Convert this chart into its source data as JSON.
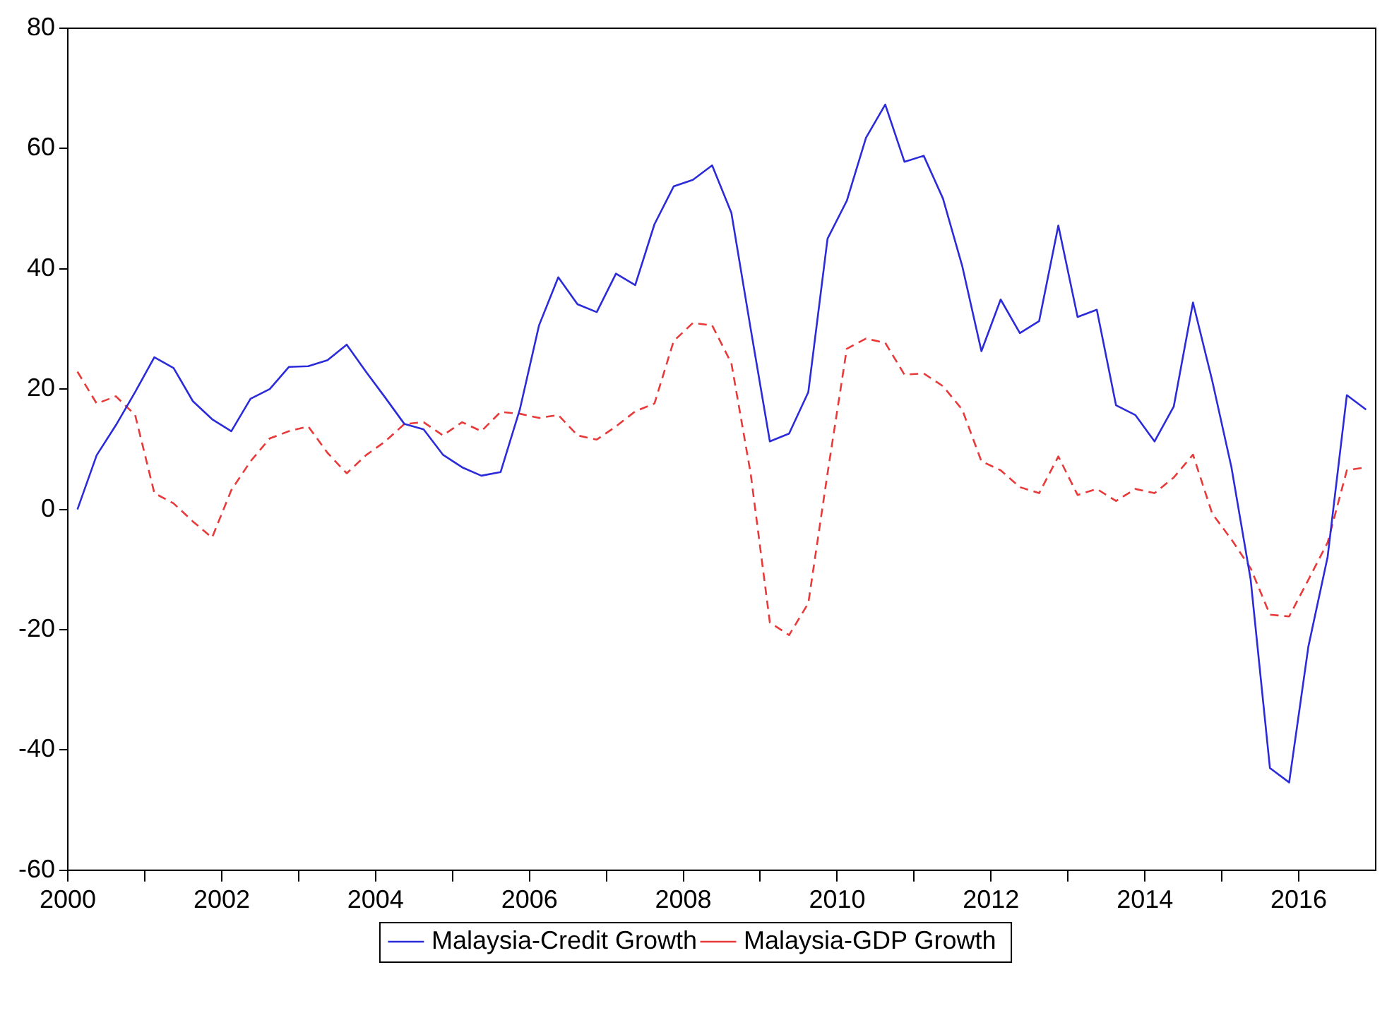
{
  "chart_data": {
    "type": "line",
    "x": [
      2000.125,
      2000.375,
      2000.625,
      2000.875,
      2001.125,
      2001.375,
      2001.625,
      2001.875,
      2002.125,
      2002.375,
      2002.625,
      2002.875,
      2003.125,
      2003.375,
      2003.625,
      2003.875,
      2004.125,
      2004.375,
      2004.625,
      2004.875,
      2005.125,
      2005.375,
      2005.625,
      2005.875,
      2006.125,
      2006.375,
      2006.625,
      2006.875,
      2007.125,
      2007.375,
      2007.625,
      2007.875,
      2008.125,
      2008.375,
      2008.625,
      2008.875,
      2009.125,
      2009.375,
      2009.625,
      2009.875,
      2010.125,
      2010.375,
      2010.625,
      2010.875,
      2011.125,
      2011.375,
      2011.625,
      2011.875,
      2012.125,
      2012.375,
      2012.625,
      2012.875,
      2013.125,
      2013.375,
      2013.625,
      2013.875,
      2014.125,
      2014.375,
      2014.625,
      2014.875,
      2015.125,
      2015.375,
      2015.625,
      2015.875,
      2016.125,
      2016.375,
      2016.625,
      2016.875
    ],
    "xlim": [
      2000,
      2017
    ],
    "xticks": [
      2000,
      {
        "value": 2001,
        "label": null
      },
      2002,
      {
        "value": 2003,
        "label": null
      },
      2004,
      {
        "value": 2005,
        "label": null
      },
      2006,
      {
        "value": 2007,
        "label": null
      },
      2008,
      {
        "value": 2009,
        "label": null
      },
      2010,
      {
        "value": 2011,
        "label": null
      },
      2012,
      {
        "value": 2013,
        "label": null
      },
      2014,
      {
        "value": 2015,
        "label": null
      },
      2016
    ],
    "ylim": [
      -60,
      80
    ],
    "yticks": [
      -60,
      -40,
      -20,
      0,
      20,
      40,
      60,
      80
    ],
    "grid": false,
    "legend": "bottom",
    "marker": "none",
    "series": [
      {
        "name": "Malaysia-Credit Growth",
        "color": "#2b2bd9",
        "line_style": "solid",
        "values": [
          0,
          9,
          14,
          19.5,
          25.3,
          23.5,
          18,
          15,
          13,
          18.4,
          20,
          23.7,
          23.8,
          24.8,
          27.4,
          22.9,
          18.6,
          14.2,
          13.3,
          9.1,
          7,
          5.6,
          6.2,
          16.6,
          30.6,
          38.6,
          34.1,
          32.8,
          39.2,
          37.3,
          47.4,
          53.7,
          54.8,
          57.2,
          49.3,
          30.1,
          11.3,
          12.6,
          19.5,
          45,
          51.3,
          61.8,
          67.3,
          57.8,
          58.8,
          51.7,
          40.5,
          26.3,
          34.9,
          29.3,
          31.3,
          47.2,
          32,
          33.2,
          17.3,
          15.7,
          11.3,
          17.1,
          34.4,
          21.4,
          7,
          -11.7,
          -43,
          -45.4,
          -22.8,
          -7.9,
          19,
          16.6
        ]
      },
      {
        "name": "Malaysia-GDP Growth",
        "color": "#e83a3a",
        "line_style": "dashed",
        "values": [
          22.9,
          17.6,
          18.8,
          15.7,
          2.7,
          1,
          -2,
          -4.7,
          3.2,
          8,
          11.8,
          13,
          13.8,
          9.4,
          6,
          9,
          11.3,
          14.2,
          14.5,
          12.3,
          14.5,
          13,
          16.2,
          15.9,
          15.2,
          15.7,
          12.3,
          11.6,
          13.8,
          16.3,
          17.6,
          28,
          31,
          30.6,
          24.3,
          6,
          -18.8,
          -20.9,
          -15.6,
          6,
          26.7,
          28.4,
          27.7,
          22.4,
          22.6,
          20.5,
          16.6,
          8,
          6.5,
          3.7,
          2.7,
          8.8,
          2.4,
          3.4,
          1.4,
          3.4,
          2.7,
          5.3,
          9.1,
          -0.7,
          -5,
          -9.8,
          -17.5,
          -17.8,
          -11.7,
          -5.5,
          6.5,
          7
        ]
      }
    ]
  }
}
